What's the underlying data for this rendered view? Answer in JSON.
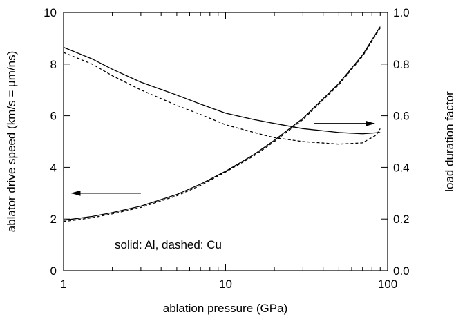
{
  "chart_data": {
    "type": "line",
    "title": "",
    "xlabel": "ablation pressure (GPa)",
    "ylabel_left": "ablator drive speed (km/s = µm/ns)",
    "ylabel_right": "load duration factor",
    "xscale": "log",
    "xlim": [
      1,
      100
    ],
    "ylim_left": [
      0,
      10
    ],
    "ylim_right": [
      0.0,
      1.0
    ],
    "x_ticks": [
      1,
      10,
      100
    ],
    "x_tick_labels": [
      "1",
      "10",
      "100"
    ],
    "y_left_ticks": [
      0,
      2,
      4,
      6,
      8,
      10
    ],
    "y_left_tick_labels": [
      "0",
      "2",
      "4",
      "6",
      "8",
      "10"
    ],
    "y_right_ticks": [
      0.0,
      0.2,
      0.4,
      0.6,
      0.8,
      1.0
    ],
    "y_right_tick_labels": [
      "0.0",
      "0.2",
      "0.4",
      "0.6",
      "0.8",
      "1.0"
    ],
    "grid": false,
    "annotation": "solid: Al, dashed: Cu",
    "series": [
      {
        "axis": "left",
        "style": "solid",
        "color": "#000000",
        "x": [
          1,
          1.5,
          2,
          3,
          5,
          7,
          10,
          15,
          20,
          30,
          50,
          70,
          90
        ],
        "y": [
          1.95,
          2.1,
          2.25,
          2.5,
          2.95,
          3.35,
          3.85,
          4.5,
          5.05,
          5.9,
          7.25,
          8.35,
          9.45
        ]
      },
      {
        "axis": "left",
        "style": "dashed",
        "color": "#000000",
        "x": [
          1,
          1.5,
          2,
          3,
          5,
          7,
          10,
          15,
          20,
          30,
          50,
          70,
          90
        ],
        "y": [
          1.9,
          2.05,
          2.2,
          2.45,
          2.9,
          3.3,
          3.82,
          4.45,
          5.0,
          5.85,
          7.2,
          8.3,
          9.4
        ]
      },
      {
        "axis": "right",
        "style": "solid",
        "color": "#000000",
        "x": [
          1,
          1.5,
          2,
          3,
          5,
          7,
          10,
          15,
          20,
          30,
          50,
          70,
          90
        ],
        "y": [
          0.865,
          0.82,
          0.78,
          0.73,
          0.68,
          0.645,
          0.61,
          0.585,
          0.57,
          0.55,
          0.535,
          0.53,
          0.535
        ]
      },
      {
        "axis": "right",
        "style": "dashed",
        "color": "#000000",
        "x": [
          1,
          1.5,
          2,
          3,
          5,
          7,
          10,
          15,
          20,
          30,
          50,
          70,
          85,
          90
        ],
        "y": [
          0.845,
          0.8,
          0.755,
          0.7,
          0.64,
          0.605,
          0.565,
          0.535,
          0.515,
          0.5,
          0.49,
          0.495,
          0.525,
          0.55
        ]
      }
    ],
    "arrows": [
      {
        "direction": "left",
        "points_to": "left axis",
        "x_from": 3,
        "x_to": 1.12,
        "y_axis": "left",
        "y": 3.0
      },
      {
        "direction": "right",
        "points_to": "right axis",
        "x_from": 35,
        "x_to": 83,
        "y_axis": "right",
        "y": 0.57
      }
    ]
  }
}
